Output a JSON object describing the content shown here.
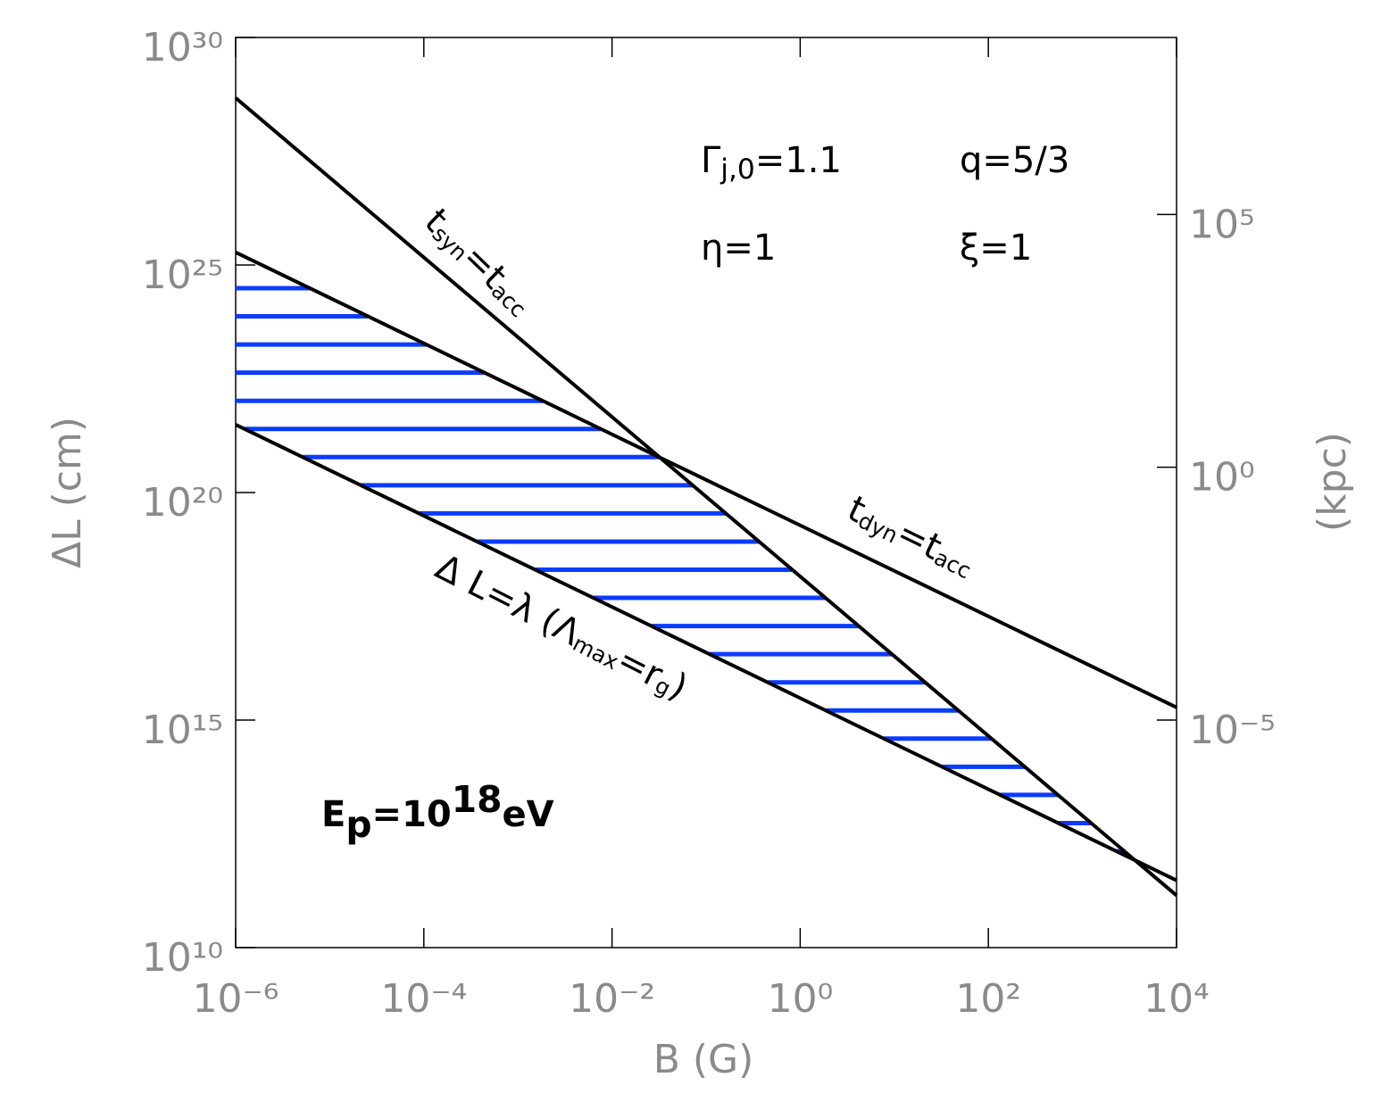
{
  "chart_data": {
    "type": "line",
    "xlabel": "B (G)",
    "ylabel": "ΔL (cm)",
    "y2label": "(kpc)",
    "xlog": true,
    "ylog": true,
    "y2log": true,
    "xlim": [
      1e-06,
      10000.0
    ],
    "ylim": [
      10000000000.0,
      1e+30
    ],
    "y2lim": [
      3.16e-10,
      316000000.0
    ],
    "xticks": [
      {
        "value": 1e-06,
        "label": "10⁻⁶"
      },
      {
        "value": 0.0001,
        "label": "10⁻⁴"
      },
      {
        "value": 0.01,
        "label": "10⁻²"
      },
      {
        "value": 1,
        "label": "10⁰"
      },
      {
        "value": 100,
        "label": "10²"
      },
      {
        "value": 10000,
        "label": "10⁴"
      }
    ],
    "yticks": [
      {
        "value": 10000000000.0,
        "label": "10¹⁰"
      },
      {
        "value": 1000000000000000.0,
        "label": "10¹⁵"
      },
      {
        "value": 1e+20,
        "label": "10²⁰"
      },
      {
        "value": 1e+25,
        "label": "10²⁵"
      },
      {
        "value": 1e+30,
        "label": "10³⁰"
      }
    ],
    "y2ticks": [
      {
        "value": 1e-05,
        "label": "10⁻⁵"
      },
      {
        "value": 1,
        "label": "10⁰"
      },
      {
        "value": 100000,
        "label": "10⁵"
      }
    ],
    "hatch_color": "#0a3cff",
    "series": [
      {
        "color": "#000000",
        "x": [
          1e-06,
          10000.0
        ],
        "values": [
          4.7e+28,
          140000000000.0
        ]
      },
      {
        "color": "#000000",
        "x": [
          1e-06,
          10000.0
        ],
        "values": [
          1.9e+25,
          1900000000000000.0
        ]
      },
      {
        "color": "#000000",
        "x": [
          1e-06,
          10000.0
        ],
        "values": [
          3.1e+21,
          300000000000.0
        ]
      }
    ],
    "annotations": [
      {
        "parts": [
          {
            "text": "t"
          },
          {
            "sub": "syn"
          },
          {
            "text": "=t"
          },
          {
            "sub": "acc"
          }
        ]
      },
      {
        "parts": [
          {
            "text": "t"
          },
          {
            "sub": "dyn"
          },
          {
            "text": "=t"
          },
          {
            "sub": "acc"
          }
        ]
      },
      {
        "parts": [
          {
            "text": "Δ L=λ (Λ"
          },
          {
            "sub": "max"
          },
          {
            "text": "=r"
          },
          {
            "sub": "g"
          },
          {
            "text": ")"
          }
        ]
      },
      {
        "parts": [
          {
            "text": "Γ"
          },
          {
            "sub": "j,0"
          },
          {
            "text": "=1.1"
          }
        ]
      },
      {
        "parts": [
          {
            "text": "q=5/3"
          }
        ]
      },
      {
        "parts": [
          {
            "text": "η=1"
          }
        ]
      },
      {
        "parts": [
          {
            "text": "ξ=1"
          }
        ]
      },
      {
        "parts": [
          {
            "text": "E"
          },
          {
            "sub": "p"
          },
          {
            "text": "=10"
          },
          {
            "sup": "18"
          },
          {
            "text": "eV"
          }
        ]
      }
    ]
  }
}
